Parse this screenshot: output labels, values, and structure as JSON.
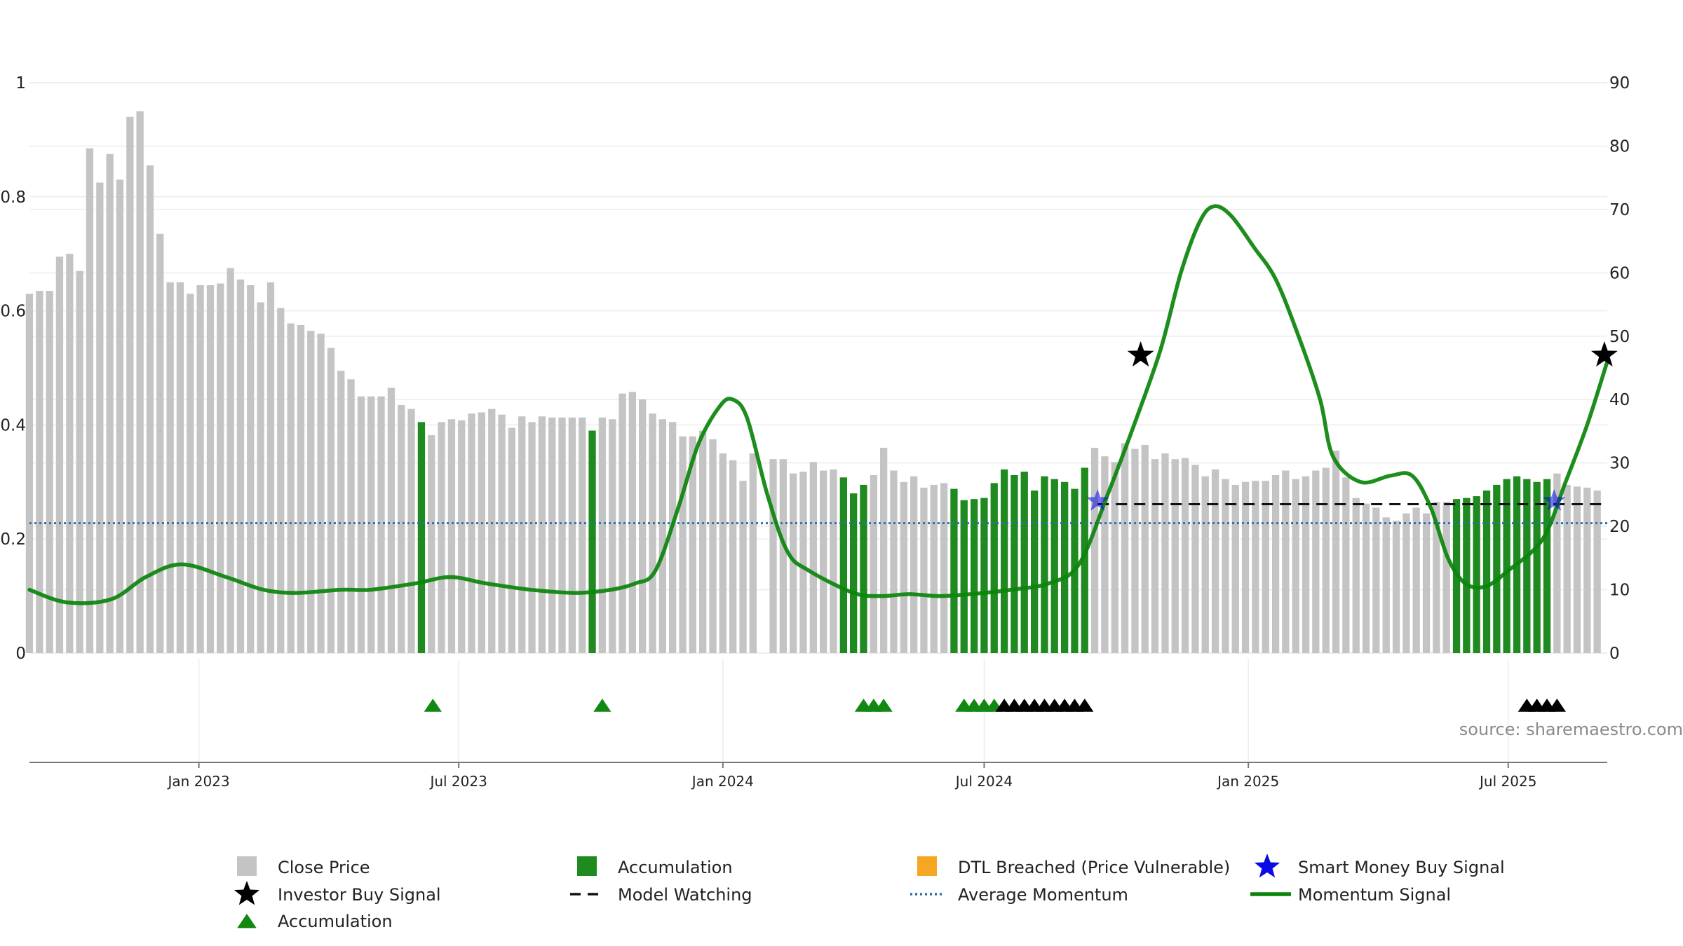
{
  "chart_data": {
    "type": "bar",
    "source": "source: sharemaestro.com",
    "left_axis": {
      "ticks": [
        "0",
        "0.2",
        "0.4",
        "0.6",
        "0.8",
        "1"
      ],
      "ylim": [
        0,
        1
      ]
    },
    "right_axis": {
      "ticks": [
        "0",
        "10",
        "20",
        "30",
        "40",
        "50",
        "60",
        "70",
        "80",
        "90"
      ],
      "ylim": [
        0,
        90
      ]
    },
    "x_axis": {
      "start": "2022-09-05",
      "end": "2025-09-08",
      "ticks": [
        {
          "date": "2023-01-01",
          "label": "Jan 2023"
        },
        {
          "date": "2023-07-01",
          "label": "Jul 2023"
        },
        {
          "date": "2024-01-01",
          "label": "Jan 2024"
        },
        {
          "date": "2024-07-01",
          "label": "Jul 2024"
        },
        {
          "date": "2025-01-01",
          "label": "Jan 2025"
        },
        {
          "date": "2025-07-01",
          "label": "Jul 2025"
        }
      ]
    },
    "bars_start": "2022-09-05",
    "bars_step_days": 7,
    "close_price": [
      0.63,
      0.635,
      0.635,
      0.695,
      0.7,
      0.67,
      0.885,
      0.825,
      0.875,
      0.83,
      0.94,
      0.95,
      0.855,
      0.735,
      0.65,
      0.65,
      0.63,
      0.645,
      0.645,
      0.648,
      0.675,
      0.655,
      0.645,
      0.615,
      0.65,
      0.605,
      0.578,
      0.575,
      0.565,
      0.56,
      0.535,
      0.495,
      0.48,
      0.45,
      0.45,
      0.45,
      0.465,
      0.435,
      0.428,
      0.405,
      0.382,
      0.405,
      0.41,
      0.408,
      0.42,
      0.422,
      0.428,
      0.418,
      0.395,
      0.415,
      0.405,
      0.415,
      0.413,
      0.413,
      0.413,
      0.413,
      0.39,
      0.413,
      0.41,
      0.455,
      0.458,
      0.445,
      0.42,
      0.41,
      0.405,
      0.38,
      0.38,
      0.39,
      0.375,
      0.35,
      0.338,
      0.302,
      0.35,
      null,
      0.34,
      0.34,
      0.315,
      0.318,
      0.335,
      0.32,
      0.322,
      0.308,
      0.28,
      0.295,
      0.312,
      0.36,
      0.32,
      0.3,
      0.31,
      0.29,
      0.295,
      0.298,
      0.288,
      0.268,
      0.27,
      0.272,
      0.298,
      0.322,
      0.312,
      0.318,
      0.285,
      0.31,
      0.305,
      0.3,
      0.288,
      0.325,
      0.36,
      0.345,
      0.335,
      0.368,
      0.358,
      0.365,
      0.34,
      0.35,
      0.34,
      0.342,
      0.33,
      0.31,
      0.322,
      0.305,
      0.295,
      0.3,
      0.302,
      0.302,
      0.312,
      0.32,
      0.305,
      0.31,
      0.32,
      0.325,
      0.355,
      0.308,
      0.272,
      0.262,
      0.255,
      0.238,
      0.232,
      0.245,
      0.255,
      0.245,
      0.265,
      0.265,
      0.27,
      0.272,
      0.275,
      0.285,
      0.295,
      0.305,
      0.31,
      0.305,
      0.3,
      0.305,
      0.315,
      0.295,
      0.292,
      0.29,
      0.285
    ],
    "accumulation_bar_indices": [
      39,
      56,
      81,
      82,
      83,
      92,
      93,
      94,
      95,
      96,
      97,
      98,
      99,
      100,
      101,
      102,
      103,
      104,
      105,
      142,
      143,
      144,
      145,
      146,
      147,
      148,
      149,
      150,
      151
    ],
    "accumulation_markers_dates": [
      "2023-06-13",
      "2023-10-09",
      "2024-04-08",
      "2024-04-15",
      "2024-04-22",
      "2024-06-17",
      "2024-06-24",
      "2024-07-01",
      "2024-07-08"
    ],
    "investor_buy_markers_dates": [
      "2024-07-15",
      "2024-07-22",
      "2024-07-29",
      "2024-08-05",
      "2024-08-12",
      "2024-08-19",
      "2024-08-26",
      "2024-09-02",
      "2024-09-09",
      "2025-07-14",
      "2025-07-21",
      "2025-07-28",
      "2025-08-04"
    ],
    "momentum_signal": [
      [
        "2022-09-05",
        10
      ],
      [
        "2022-10-01",
        8
      ],
      [
        "2022-11-01",
        8.5
      ],
      [
        "2022-11-25",
        12
      ],
      [
        "2022-12-20",
        14
      ],
      [
        "2023-01-20",
        12
      ],
      [
        "2023-02-15",
        10
      ],
      [
        "2023-03-10",
        9.5
      ],
      [
        "2023-04-10",
        10
      ],
      [
        "2023-05-01",
        10
      ],
      [
        "2023-06-01",
        11
      ],
      [
        "2023-06-25",
        12
      ],
      [
        "2023-07-20",
        11
      ],
      [
        "2023-08-20",
        10
      ],
      [
        "2023-09-20",
        9.5
      ],
      [
        "2023-10-15",
        10
      ],
      [
        "2023-11-01",
        11
      ],
      [
        "2023-11-15",
        13
      ],
      [
        "2023-12-01",
        23
      ],
      [
        "2023-12-15",
        33
      ],
      [
        "2023-12-30",
        39
      ],
      [
        "2024-01-08",
        40
      ],
      [
        "2024-01-18",
        37
      ],
      [
        "2024-02-01",
        25
      ],
      [
        "2024-02-15",
        16
      ],
      [
        "2024-03-01",
        13
      ],
      [
        "2024-04-01",
        9.5
      ],
      [
        "2024-04-20",
        9
      ],
      [
        "2024-05-10",
        9.3
      ],
      [
        "2024-06-01",
        9
      ],
      [
        "2024-07-01",
        9.5
      ],
      [
        "2024-07-20",
        10
      ],
      [
        "2024-08-15",
        11
      ],
      [
        "2024-09-05",
        14
      ],
      [
        "2024-09-25",
        25
      ],
      [
        "2024-10-15",
        37
      ],
      [
        "2024-11-01",
        48
      ],
      [
        "2024-11-15",
        60
      ],
      [
        "2024-11-28",
        68
      ],
      [
        "2024-12-08",
        70.5
      ],
      [
        "2024-12-20",
        69
      ],
      [
        "2025-01-05",
        64
      ],
      [
        "2025-01-20",
        59
      ],
      [
        "2025-02-05",
        50
      ],
      [
        "2025-02-20",
        40
      ],
      [
        "2025-03-01",
        31
      ],
      [
        "2025-03-20",
        27
      ],
      [
        "2025-04-10",
        28
      ],
      [
        "2025-04-25",
        28
      ],
      [
        "2025-05-08",
        23
      ],
      [
        "2025-05-20",
        15
      ],
      [
        "2025-06-01",
        11
      ],
      [
        "2025-06-15",
        10.5
      ],
      [
        "2025-07-01",
        13
      ],
      [
        "2025-07-25",
        18
      ],
      [
        "2025-08-10",
        27
      ],
      [
        "2025-08-25",
        36
      ],
      [
        "2025-09-08",
        46
      ]
    ],
    "average_momentum": 20.5,
    "model_watching": {
      "value": 23.5,
      "from": "2024-09-18",
      "to": "2025-09-08"
    },
    "smart_money_stars": [
      [
        "2024-09-18",
        24
      ],
      [
        "2025-08-02",
        24
      ]
    ],
    "investor_buy_stars": [
      [
        "2024-10-18",
        47
      ],
      [
        "2025-09-06",
        47
      ]
    ],
    "colors": {
      "close_price": "#c4c4c4",
      "accumulation": "#1f8a1f",
      "accumulation_marker": "#118811",
      "dtl": "#f5a623",
      "momentum": "#0a840a",
      "average_momentum": "#2f6fa8",
      "smart_money": "#0a0ae6",
      "investor_buy": "#000000",
      "grid": "#ececec"
    },
    "legend": [
      {
        "key": "close",
        "label": "Close Price"
      },
      {
        "key": "accum_bar",
        "label": "Accumulation"
      },
      {
        "key": "dtl",
        "label": "DTL Breached (Price Vulnerable)"
      },
      {
        "key": "smart",
        "label": "Smart Money Buy Signal"
      },
      {
        "key": "investor",
        "label": "Investor Buy Signal"
      },
      {
        "key": "watching",
        "label": "Model Watching"
      },
      {
        "key": "avg",
        "label": "Average Momentum"
      },
      {
        "key": "momentum",
        "label": "Momentum Signal"
      },
      {
        "key": "accum_tri",
        "label": "Accumulation"
      }
    ]
  }
}
